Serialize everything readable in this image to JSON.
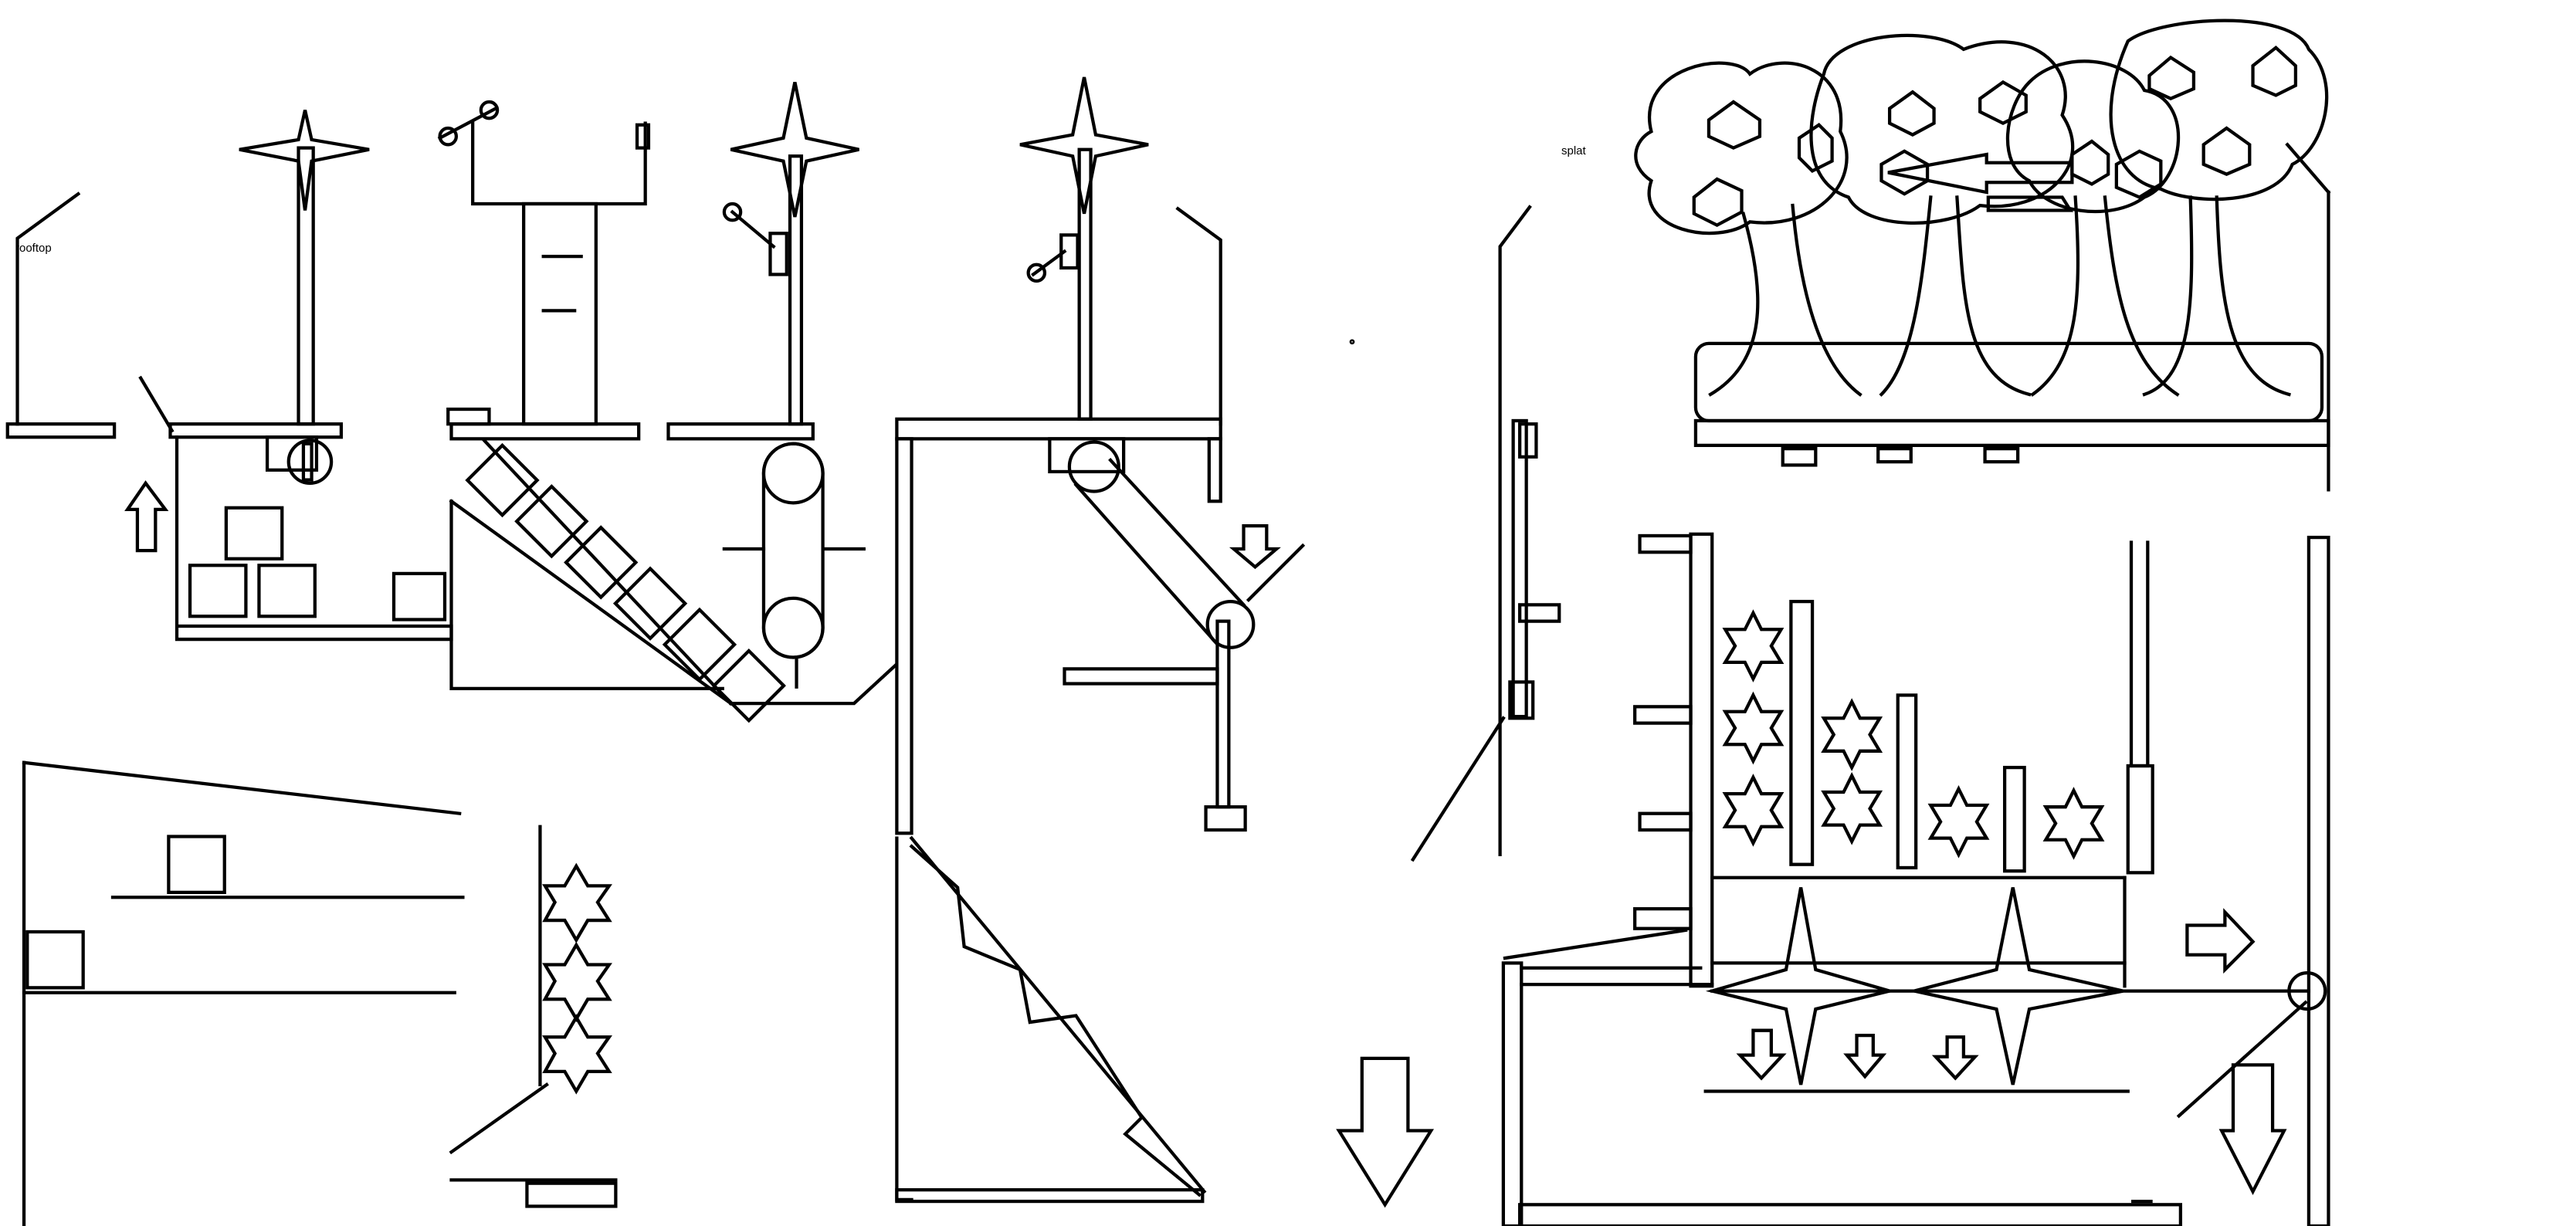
{
  "labels": {
    "rooftop": "rooftop",
    "splat": "splat"
  }
}
